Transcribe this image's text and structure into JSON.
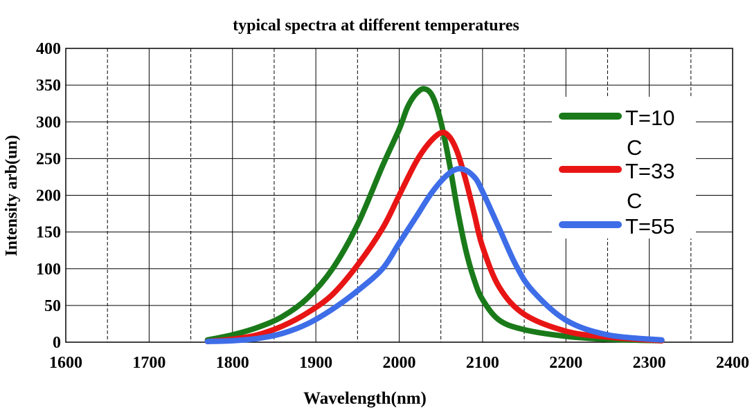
{
  "chart_data": {
    "type": "line",
    "title": "typical spectra at different temperatures",
    "xlabel": "Wavelength(nm)",
    "ylabel": "Intensity arb(un)",
    "xlim": [
      1600,
      2400
    ],
    "ylim": [
      0,
      400
    ],
    "x_ticks": [
      1600,
      1700,
      1800,
      1900,
      2000,
      2100,
      2200,
      2300,
      2400
    ],
    "y_ticks": [
      0,
      50,
      100,
      150,
      200,
      250,
      300,
      350,
      400
    ],
    "grid": true,
    "legend_position": "right",
    "series": [
      {
        "name": "T=10 C",
        "legend_lines": [
          "T=10",
          "C"
        ],
        "color": "#1a7a1a",
        "points": [
          [
            1770,
            3
          ],
          [
            1800,
            10
          ],
          [
            1830,
            20
          ],
          [
            1860,
            35
          ],
          [
            1890,
            60
          ],
          [
            1920,
            100
          ],
          [
            1950,
            160
          ],
          [
            1980,
            240
          ],
          [
            2000,
            290
          ],
          [
            2010,
            320
          ],
          [
            2020,
            338
          ],
          [
            2030,
            345
          ],
          [
            2040,
            335
          ],
          [
            2050,
            300
          ],
          [
            2060,
            245
          ],
          [
            2070,
            180
          ],
          [
            2080,
            125
          ],
          [
            2090,
            85
          ],
          [
            2100,
            58
          ],
          [
            2120,
            30
          ],
          [
            2150,
            17
          ],
          [
            2200,
            8
          ],
          [
            2250,
            4
          ],
          [
            2315,
            2
          ]
        ]
      },
      {
        "name": "T=33 C",
        "legend_lines": [
          "T=33",
          "C"
        ],
        "color": "#e81515",
        "points": [
          [
            1770,
            1
          ],
          [
            1800,
            4
          ],
          [
            1830,
            10
          ],
          [
            1860,
            22
          ],
          [
            1890,
            40
          ],
          [
            1920,
            65
          ],
          [
            1950,
            105
          ],
          [
            1980,
            155
          ],
          [
            2000,
            200
          ],
          [
            2020,
            245
          ],
          [
            2035,
            270
          ],
          [
            2050,
            285
          ],
          [
            2060,
            280
          ],
          [
            2070,
            258
          ],
          [
            2080,
            220
          ],
          [
            2090,
            175
          ],
          [
            2100,
            130
          ],
          [
            2120,
            75
          ],
          [
            2150,
            38
          ],
          [
            2200,
            15
          ],
          [
            2250,
            7
          ],
          [
            2315,
            2
          ]
        ]
      },
      {
        "name": "T=55",
        "legend_lines": [
          "T=55"
        ],
        "color": "#3e6de8",
        "points": [
          [
            1770,
            1
          ],
          [
            1800,
            2
          ],
          [
            1830,
            5
          ],
          [
            1860,
            12
          ],
          [
            1890,
            25
          ],
          [
            1920,
            45
          ],
          [
            1950,
            70
          ],
          [
            1980,
            100
          ],
          [
            2000,
            135
          ],
          [
            2020,
            170
          ],
          [
            2040,
            205
          ],
          [
            2060,
            230
          ],
          [
            2075,
            236
          ],
          [
            2090,
            225
          ],
          [
            2100,
            205
          ],
          [
            2120,
            155
          ],
          [
            2140,
            105
          ],
          [
            2160,
            70
          ],
          [
            2200,
            30
          ],
          [
            2250,
            10
          ],
          [
            2315,
            3
          ]
        ]
      }
    ]
  }
}
